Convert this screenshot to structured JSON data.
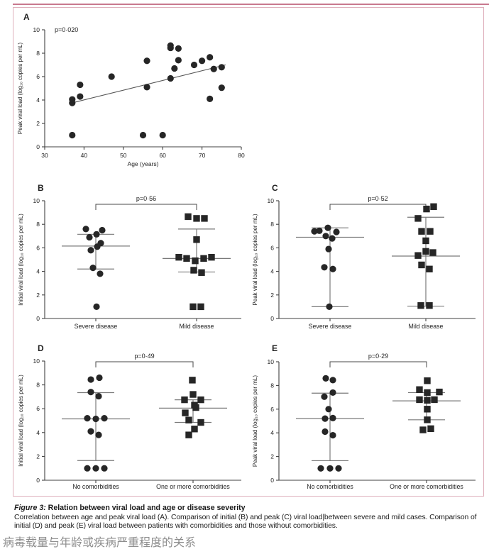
{
  "colors": {
    "accent_line": "#c9798e",
    "frame_border": "#dfb0bc",
    "marker": "#262626",
    "axis": "#404040",
    "stat_lines": "#7a7a7a",
    "bracket": "#4a4a4a",
    "footer_text": "#8e8e8e"
  },
  "caption": {
    "figure_label": "Figure 3:",
    "figure_title": " Relation between viral load and age or disease severity",
    "body": "Correlation between age and peak viral load (A). Comparison of initial (B) and peak (C) viral load|between severe and mild cases. Comparison of initial (D) and peak (E) viral load between patients with comorbidities and those without comorbidities."
  },
  "footer_translation": "病毒载量与年龄或疾病严重程度的关系",
  "chart_data": [
    {
      "id": "A",
      "type": "scatter",
      "p_value": "p=0·020",
      "xlabel": "Age (years)",
      "ylabel": "Peak viral load (log₁₀ copies per mL)",
      "xlim": [
        30,
        80
      ],
      "xticks": [
        30,
        40,
        50,
        60,
        70,
        80
      ],
      "ylim": [
        0,
        10
      ],
      "yticks": [
        0,
        2,
        4,
        6,
        8,
        10
      ],
      "points": [
        [
          37,
          1.0
        ],
        [
          37,
          3.75
        ],
        [
          37,
          4.05
        ],
        [
          39,
          4.3
        ],
        [
          39,
          5.3
        ],
        [
          47,
          6.0
        ],
        [
          55,
          1.0
        ],
        [
          56,
          5.1
        ],
        [
          56,
          7.35
        ],
        [
          60,
          1.0
        ],
        [
          62,
          5.85
        ],
        [
          62,
          8.45
        ],
        [
          62,
          8.65
        ],
        [
          63,
          6.7
        ],
        [
          64,
          7.4
        ],
        [
          64,
          8.4
        ],
        [
          68,
          7.0
        ],
        [
          70,
          7.35
        ],
        [
          72,
          4.1
        ],
        [
          72,
          7.65
        ],
        [
          73,
          6.65
        ],
        [
          75,
          5.05
        ],
        [
          75,
          6.8
        ]
      ],
      "trend_line": [
        [
          37.5,
          3.8
        ],
        [
          76,
          7.0
        ]
      ]
    },
    {
      "id": "B",
      "type": "dot-plot",
      "p_value": "p=0·56",
      "ylabel": "Initial viral load (log₁₀ copies per mL)",
      "ylim": [
        0,
        10
      ],
      "yticks": [
        0,
        2,
        4,
        6,
        8,
        10
      ],
      "groups": [
        {
          "label": "Severe disease",
          "marker": "circle",
          "median": 6.15,
          "whisker_high": 7.15,
          "whisker_low": 4.2,
          "points": [
            {
              "v": 7.6,
              "dx": -14
            },
            {
              "v": 7.5,
              "dx": 9
            },
            {
              "v": 7.15,
              "dx": 1
            },
            {
              "v": 6.9,
              "dx": -9
            },
            {
              "v": 6.4,
              "dx": 7
            },
            {
              "v": 6.1,
              "dx": 2
            },
            {
              "v": 5.8,
              "dx": -7
            },
            {
              "v": 4.3,
              "dx": -4
            },
            {
              "v": 3.8,
              "dx": 6
            },
            {
              "v": 1.0,
              "dx": 1
            }
          ]
        },
        {
          "label": "Mild disease",
          "marker": "square",
          "median": 5.1,
          "whisker_high": 7.6,
          "whisker_low": 3.95,
          "points": [
            {
              "v": 8.65,
              "dx": -12
            },
            {
              "v": 8.5,
              "dx": 0
            },
            {
              "v": 8.5,
              "dx": 11
            },
            {
              "v": 6.7,
              "dx": 0
            },
            {
              "v": 5.2,
              "dx": -25
            },
            {
              "v": 5.1,
              "dx": -14
            },
            {
              "v": 4.9,
              "dx": -2
            },
            {
              "v": 5.1,
              "dx": 10
            },
            {
              "v": 5.2,
              "dx": 21
            },
            {
              "v": 4.1,
              "dx": -4
            },
            {
              "v": 3.9,
              "dx": 7
            },
            {
              "v": 1.0,
              "dx": -5
            },
            {
              "v": 1.0,
              "dx": 6
            }
          ]
        }
      ]
    },
    {
      "id": "C",
      "type": "dot-plot",
      "p_value": "p=0·52",
      "ylabel": "Peak viral load (log₁₀ copies per mL)",
      "ylim": [
        0,
        10
      ],
      "yticks": [
        0,
        2,
        4,
        6,
        8,
        10
      ],
      "groups": [
        {
          "label": "Severe disease",
          "marker": "circle",
          "median": 6.9,
          "whisker_high": 7.7,
          "whisker_low": 1.0,
          "points": [
            {
              "v": 7.7,
              "dx": -3
            },
            {
              "v": 7.45,
              "dx": -15
            },
            {
              "v": 7.4,
              "dx": -22
            },
            {
              "v": 7.35,
              "dx": 9
            },
            {
              "v": 7.0,
              "dx": -6
            },
            {
              "v": 6.8,
              "dx": 3
            },
            {
              "v": 5.9,
              "dx": -2
            },
            {
              "v": 4.35,
              "dx": -8
            },
            {
              "v": 4.2,
              "dx": 4
            },
            {
              "v": 1.0,
              "dx": -1
            }
          ]
        },
        {
          "label": "Mild disease",
          "marker": "square",
          "median": 5.3,
          "whisker_high": 8.6,
          "whisker_low": 1.05,
          "points": [
            {
              "v": 9.5,
              "dx": 11
            },
            {
              "v": 9.3,
              "dx": 1
            },
            {
              "v": 8.5,
              "dx": -11
            },
            {
              "v": 7.4,
              "dx": -6
            },
            {
              "v": 7.4,
              "dx": 6
            },
            {
              "v": 6.6,
              "dx": 0
            },
            {
              "v": 5.7,
              "dx": 0
            },
            {
              "v": 5.6,
              "dx": 10
            },
            {
              "v": 5.35,
              "dx": -11
            },
            {
              "v": 4.55,
              "dx": -6
            },
            {
              "v": 4.2,
              "dx": 5
            },
            {
              "v": 1.1,
              "dx": -7
            },
            {
              "v": 1.1,
              "dx": 5
            }
          ]
        }
      ]
    },
    {
      "id": "D",
      "type": "dot-plot",
      "p_value": "p=0·49",
      "ylabel": "Initial viral load (log₁₀ copies per mL)",
      "ylim": [
        0,
        10
      ],
      "yticks": [
        0,
        2,
        4,
        6,
        8,
        10
      ],
      "groups": [
        {
          "label": "No comorbidities",
          "marker": "circle",
          "median": 5.15,
          "whisker_high": 7.35,
          "whisker_low": 1.65,
          "points": [
            {
              "v": 8.6,
              "dx": 5
            },
            {
              "v": 8.45,
              "dx": -7
            },
            {
              "v": 7.4,
              "dx": -7
            },
            {
              "v": 7.05,
              "dx": 4
            },
            {
              "v": 5.2,
              "dx": -12
            },
            {
              "v": 5.15,
              "dx": 0
            },
            {
              "v": 5.2,
              "dx": 12
            },
            {
              "v": 4.1,
              "dx": -7
            },
            {
              "v": 3.8,
              "dx": 4
            },
            {
              "v": 1.0,
              "dx": -12
            },
            {
              "v": 1.0,
              "dx": 0
            },
            {
              "v": 1.0,
              "dx": 12
            }
          ]
        },
        {
          "label": "One or more comorbidities",
          "marker": "square",
          "median": 6.05,
          "whisker_high": 6.75,
          "whisker_low": 4.85,
          "points": [
            {
              "v": 8.4,
              "dx": -1
            },
            {
              "v": 7.2,
              "dx": 0
            },
            {
              "v": 6.75,
              "dx": -12
            },
            {
              "v": 6.75,
              "dx": 11
            },
            {
              "v": 6.3,
              "dx": 2
            },
            {
              "v": 6.1,
              "dx": 4
            },
            {
              "v": 5.65,
              "dx": -11
            },
            {
              "v": 5.05,
              "dx": -6
            },
            {
              "v": 4.85,
              "dx": 11
            },
            {
              "v": 4.3,
              "dx": 2
            },
            {
              "v": 3.8,
              "dx": -6
            }
          ]
        }
      ]
    },
    {
      "id": "E",
      "type": "dot-plot",
      "p_value": "p=0·29",
      "ylabel": "Peak viral load (log₁₀ copies per mL)",
      "ylim": [
        0,
        10
      ],
      "yticks": [
        0,
        2,
        4,
        6,
        8,
        10
      ],
      "groups": [
        {
          "label": "No comorbidities",
          "marker": "circle",
          "median": 5.2,
          "whisker_high": 7.35,
          "whisker_low": 1.65,
          "points": [
            {
              "v": 8.6,
              "dx": -6
            },
            {
              "v": 8.45,
              "dx": 4
            },
            {
              "v": 7.4,
              "dx": 4
            },
            {
              "v": 7.05,
              "dx": -8
            },
            {
              "v": 6.0,
              "dx": -2
            },
            {
              "v": 5.25,
              "dx": 4
            },
            {
              "v": 5.2,
              "dx": -7
            },
            {
              "v": 4.1,
              "dx": -7
            },
            {
              "v": 3.8,
              "dx": 4
            },
            {
              "v": 1.0,
              "dx": -13
            },
            {
              "v": 1.0,
              "dx": 0
            },
            {
              "v": 1.0,
              "dx": 12
            }
          ]
        },
        {
          "label": "One or more comorbidities",
          "marker": "square",
          "median": 6.7,
          "whisker_high": 7.4,
          "whisker_low": 5.1,
          "points": [
            {
              "v": 8.4,
              "dx": 1
            },
            {
              "v": 7.65,
              "dx": -10
            },
            {
              "v": 7.4,
              "dx": 1
            },
            {
              "v": 7.45,
              "dx": 18
            },
            {
              "v": 6.8,
              "dx": -10
            },
            {
              "v": 6.75,
              "dx": 1
            },
            {
              "v": 6.8,
              "dx": 11
            },
            {
              "v": 6.0,
              "dx": 1
            },
            {
              "v": 5.1,
              "dx": 1
            },
            {
              "v": 4.25,
              "dx": -5
            },
            {
              "v": 4.35,
              "dx": 6
            }
          ]
        }
      ]
    }
  ]
}
